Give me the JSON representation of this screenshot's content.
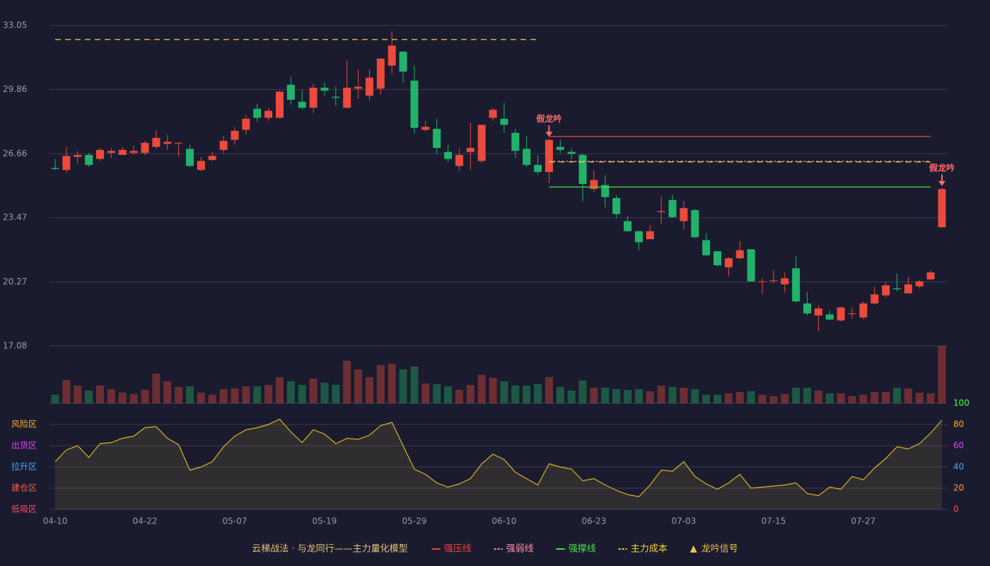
{
  "chart_data": {
    "type": "candlestick",
    "categories": [
      "04-10",
      null,
      null,
      null,
      null,
      null,
      null,
      null,
      "04-22",
      null,
      null,
      null,
      null,
      null,
      null,
      null,
      "05-07",
      null,
      null,
      null,
      null,
      null,
      null,
      null,
      "05-19",
      null,
      null,
      null,
      null,
      null,
      null,
      null,
      "05-29",
      null,
      null,
      null,
      null,
      null,
      null,
      null,
      "06-10",
      null,
      null,
      null,
      null,
      null,
      null,
      null,
      "06-23",
      null,
      null,
      null,
      null,
      null,
      null,
      null,
      "07-03",
      null,
      null,
      null,
      null,
      null,
      null,
      null,
      "07-15",
      null,
      null,
      null,
      null,
      null,
      null,
      null,
      "07-27",
      null,
      null,
      null,
      null,
      null,
      null,
      null
    ],
    "open": [
      25.95,
      25.85,
      26.5,
      26.6,
      26.4,
      26.7,
      26.6,
      26.7,
      26.7,
      27.0,
      27.15,
      27.2,
      26.9,
      25.85,
      26.35,
      26.85,
      27.35,
      27.85,
      28.9,
      28.45,
      28.45,
      30.1,
      29.25,
      28.95,
      29.95,
      29.5,
      28.95,
      29.9,
      29.55,
      29.9,
      31.05,
      31.75,
      30.3,
      27.85,
      27.9,
      26.75,
      26.05,
      26.75,
      26.3,
      28.45,
      28.4,
      27.7,
      26.9,
      26.1,
      25.75,
      27.0,
      26.75,
      26.6,
      24.9,
      25.1,
      24.45,
      23.3,
      22.8,
      22.4,
      23.75,
      24.35,
      23.3,
      23.85,
      22.35,
      21.8,
      21.0,
      21.45,
      21.9,
      20.27,
      20.35,
      20.15,
      20.95,
      19.2,
      18.6,
      18.65,
      18.35,
      18.7,
      18.5,
      19.2,
      19.6,
      19.95,
      19.7,
      20.05,
      20.4,
      23.0
    ],
    "close": [
      25.9,
      26.55,
      26.6,
      26.1,
      26.85,
      26.8,
      26.85,
      26.8,
      27.2,
      27.45,
      27.25,
      27.2,
      26.05,
      26.3,
      26.55,
      27.3,
      27.8,
      28.4,
      28.45,
      28.8,
      29.75,
      29.35,
      28.95,
      29.95,
      29.8,
      29.45,
      29.95,
      30.0,
      30.45,
      31.4,
      32.05,
      30.75,
      27.95,
      28.0,
      26.95,
      26.4,
      26.6,
      26.95,
      28.1,
      28.85,
      28.1,
      26.8,
      26.1,
      25.75,
      27.35,
      26.85,
      26.65,
      25.15,
      25.35,
      24.5,
      23.65,
      22.8,
      22.25,
      22.8,
      23.8,
      23.5,
      23.95,
      22.5,
      21.6,
      21.1,
      21.45,
      21.85,
      20.3,
      20.3,
      20.35,
      20.45,
      19.3,
      18.7,
      18.95,
      18.4,
      19.0,
      18.7,
      19.2,
      19.65,
      20.1,
      19.9,
      20.15,
      20.3,
      20.75,
      24.9
    ],
    "high": [
      26.4,
      27.0,
      26.8,
      26.7,
      26.95,
      26.95,
      27.0,
      27.05,
      27.3,
      27.85,
      27.6,
      27.25,
      27.1,
      26.5,
      26.75,
      27.55,
      28.0,
      28.6,
      29.15,
      28.95,
      29.8,
      30.5,
      29.85,
      30.15,
      30.2,
      30.0,
      31.3,
      30.85,
      30.85,
      31.4,
      32.75,
      31.75,
      31.05,
      28.3,
      28.4,
      27.1,
      26.9,
      28.2,
      28.1,
      28.95,
      29.2,
      27.9,
      27.55,
      26.6,
      27.4,
      27.35,
      26.9,
      26.65,
      25.85,
      25.6,
      24.6,
      23.55,
      22.8,
      23.1,
      24.5,
      24.6,
      24.3,
      23.9,
      22.7,
      21.8,
      21.5,
      22.3,
      21.9,
      20.45,
      20.85,
      20.75,
      21.55,
      19.75,
      19.1,
      18.85,
      19.05,
      19.0,
      19.3,
      20.05,
      20.25,
      20.7,
      20.55,
      20.35,
      20.85,
      24.95
    ],
    "low": [
      25.85,
      25.7,
      26.2,
      26.0,
      26.3,
      26.45,
      26.6,
      26.6,
      26.6,
      26.9,
      26.85,
      26.5,
      26.0,
      25.8,
      26.3,
      26.7,
      27.1,
      27.6,
      28.25,
      28.3,
      28.4,
      29.1,
      28.85,
      28.7,
      29.55,
      29.05,
      28.9,
      29.4,
      29.3,
      29.6,
      30.65,
      30.2,
      27.65,
      27.75,
      26.65,
      26.25,
      25.8,
      25.85,
      26.2,
      28.3,
      27.7,
      26.45,
      26.0,
      25.6,
      25.2,
      26.7,
      26.4,
      24.3,
      24.75,
      24.0,
      23.45,
      22.75,
      21.85,
      22.4,
      23.15,
      23.45,
      22.9,
      22.45,
      21.55,
      21.05,
      20.55,
      21.4,
      20.3,
      19.65,
      20.2,
      19.75,
      19.25,
      18.6,
      17.8,
      18.35,
      18.3,
      18.45,
      18.4,
      19.15,
      19.5,
      19.8,
      19.7,
      19.95,
      20.35,
      22.95
    ],
    "up_color": "#ec4a3c",
    "down_color": "#22b36a",
    "ylim": [
      17.08,
      33.05
    ],
    "yticks": [
      17.08,
      20.27,
      23.47,
      26.66,
      29.86,
      33.05
    ],
    "grid": true,
    "volume": [
      12,
      33,
      25,
      18,
      25,
      20,
      15,
      13,
      19,
      42,
      31,
      23,
      24,
      15,
      12,
      20,
      21,
      24,
      24,
      26,
      37,
      31,
      26,
      35,
      29,
      26,
      60,
      48,
      37,
      54,
      56,
      48,
      52,
      28,
      27,
      24,
      19,
      26,
      40,
      36,
      31,
      25,
      25,
      27,
      37,
      23,
      18,
      32,
      22,
      22,
      20,
      19,
      20,
      17,
      25,
      23,
      22,
      20,
      12,
      12,
      14,
      16,
      17,
      12,
      10,
      13,
      22,
      22,
      18,
      14,
      14,
      10,
      12,
      16,
      16,
      22,
      21,
      15,
      14,
      81
    ],
    "indicator": {
      "values": [
        45,
        56,
        60,
        49,
        62,
        63,
        67,
        69,
        77,
        78,
        67,
        61,
        37,
        40,
        45,
        59,
        69,
        75,
        77,
        80,
        85,
        73,
        63,
        75,
        71,
        62,
        67,
        66,
        70,
        79,
        82,
        60,
        38,
        33,
        25,
        21,
        24,
        29,
        43,
        52,
        47,
        35,
        29,
        23,
        43,
        40,
        38,
        27,
        29,
        23,
        18,
        14,
        12,
        23,
        37,
        36,
        45,
        31,
        24,
        19,
        25,
        33,
        20,
        21,
        22,
        23,
        25,
        15,
        13,
        21,
        19,
        31,
        28,
        39,
        48,
        59,
        57,
        62,
        72,
        84
      ],
      "color": "#d8b526",
      "ylim": [
        0,
        100
      ],
      "yticks": [
        0,
        20,
        40,
        60,
        80,
        100
      ],
      "ytick_colors": [
        "#ff4d4f",
        "#ff9a3c",
        "#4aa3ff",
        "#e040fb",
        "#ffb020",
        "#4cff4c"
      ],
      "zone_labels": [
        "低吸区",
        "建仓区",
        "拉升区",
        "出货区",
        "风险区"
      ],
      "zone_colors": [
        "#ff4d6a",
        "#ff5a45",
        "#4aa3ff",
        "#e040fb",
        "#ffb020"
      ]
    },
    "levels": [
      {
        "name": "强压线",
        "color": "#e8453c",
        "dash": "",
        "segments": [
          {
            "from": 44,
            "to": 78,
            "value": 27.52
          }
        ]
      },
      {
        "name": "强弱线",
        "color": "#ff8fb0",
        "dash": "3 3",
        "segments": [
          {
            "from": 44,
            "to": 78,
            "value": 26.28
          }
        ]
      },
      {
        "name": "强撑线",
        "color": "#4ce04c",
        "dash": "",
        "segments": [
          {
            "from": 44,
            "to": 78,
            "value": 25.0
          }
        ]
      },
      {
        "name": "主力成本",
        "color": "#f2d233",
        "dash": "8 6",
        "segments": [
          {
            "from": 0,
            "to": 43,
            "value": 32.35
          },
          {
            "from": 44,
            "to": 78,
            "value": 26.25
          }
        ]
      }
    ],
    "signals": [
      {
        "at": 44,
        "label": "假龙吟"
      },
      {
        "at": 79,
        "label": "假龙吟"
      }
    ],
    "signal_color": "#ff6b6b",
    "legend_title": "云梯战法 · 与龙同行——主力量化模型",
    "signal_legend": {
      "name": "龙吟信号",
      "color": "#f2c244"
    }
  }
}
